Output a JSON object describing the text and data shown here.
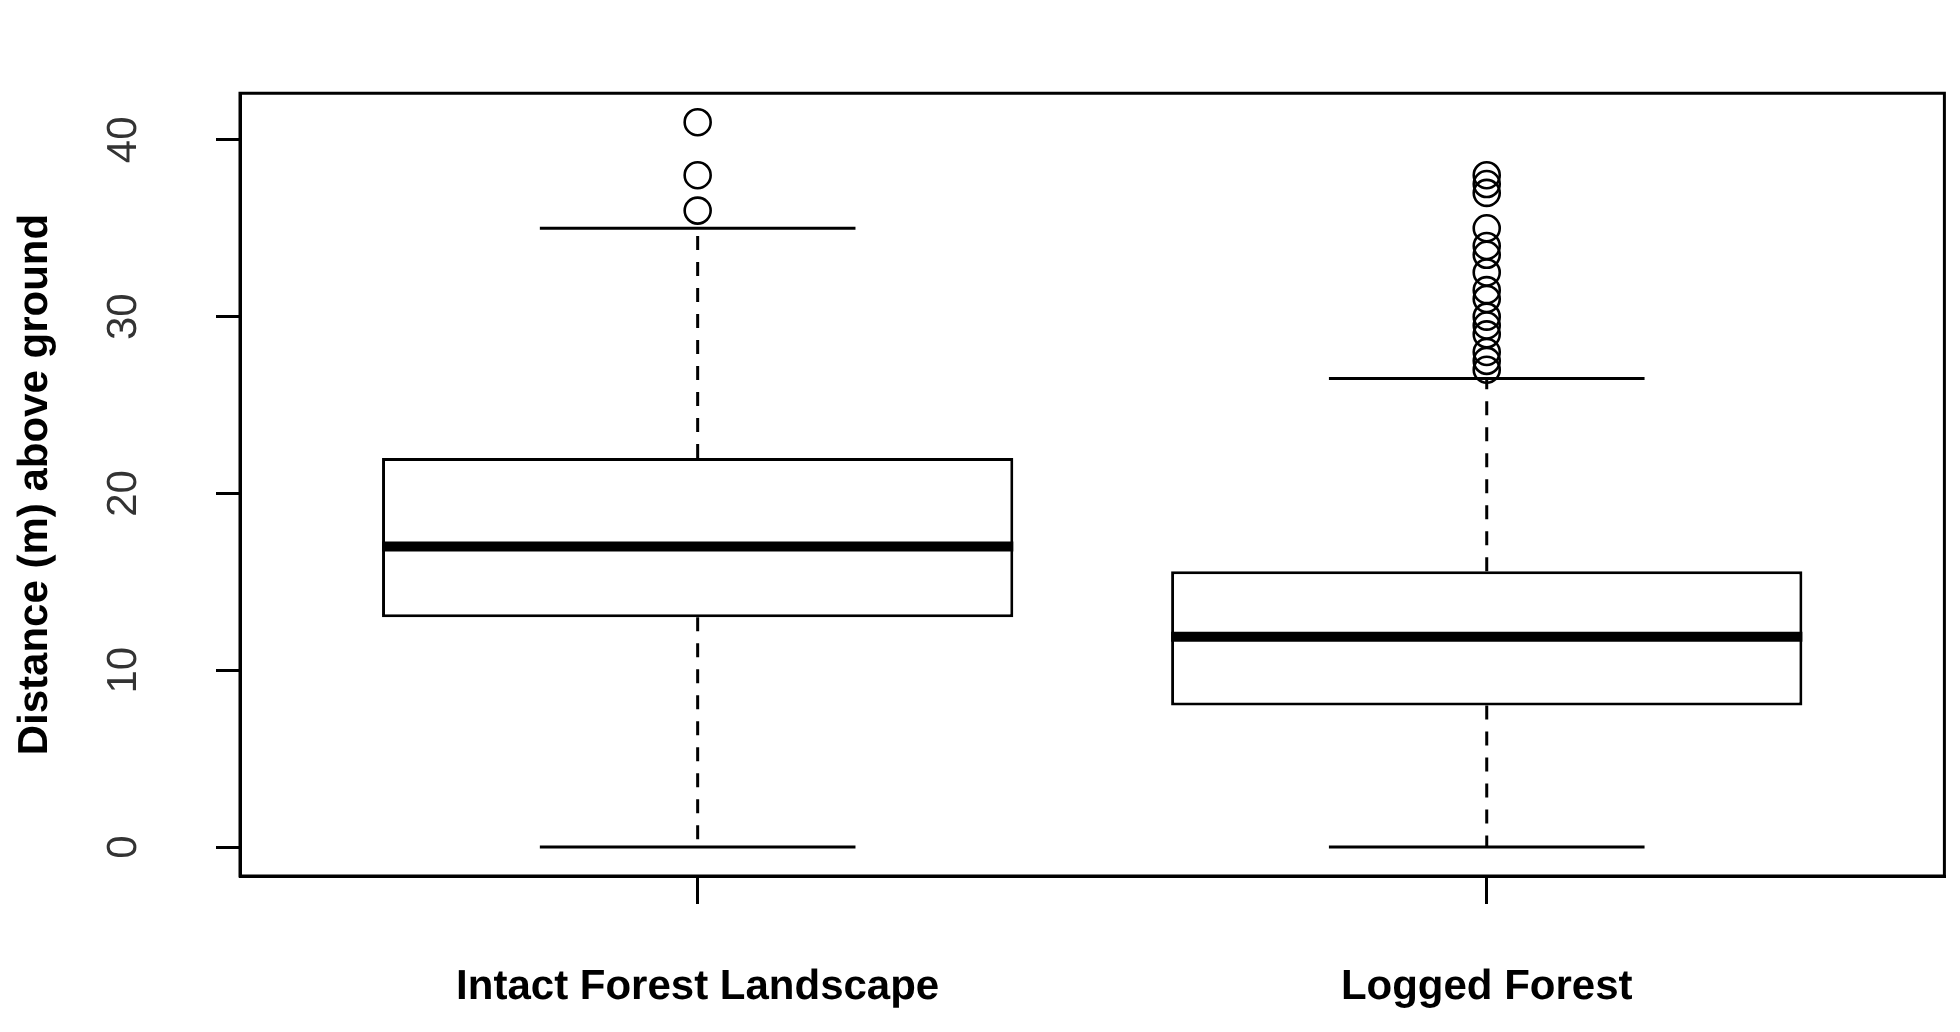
{
  "chart_data": {
    "type": "box",
    "ylabel": "Distance (m) above ground",
    "categories": [
      "Intact Forest Landscape",
      "Logged Forest"
    ],
    "boxes": [
      {
        "low": 0,
        "q1": 13,
        "median": 17,
        "q3": 22,
        "high": 35,
        "outliers": [
          36,
          38,
          41
        ]
      },
      {
        "low": 0,
        "q1": 8,
        "median": 11.9,
        "q3": 15.6,
        "high": 26.5,
        "outliers": [
          27,
          27.5,
          28,
          29,
          29.5,
          30,
          31,
          31.5,
          32.5,
          33.5,
          34,
          35,
          37,
          37.5,
          38
        ]
      }
    ],
    "ylim": [
      -1.64,
      42.64
    ],
    "yticks": [
      0,
      10,
      20,
      30,
      40
    ]
  }
}
